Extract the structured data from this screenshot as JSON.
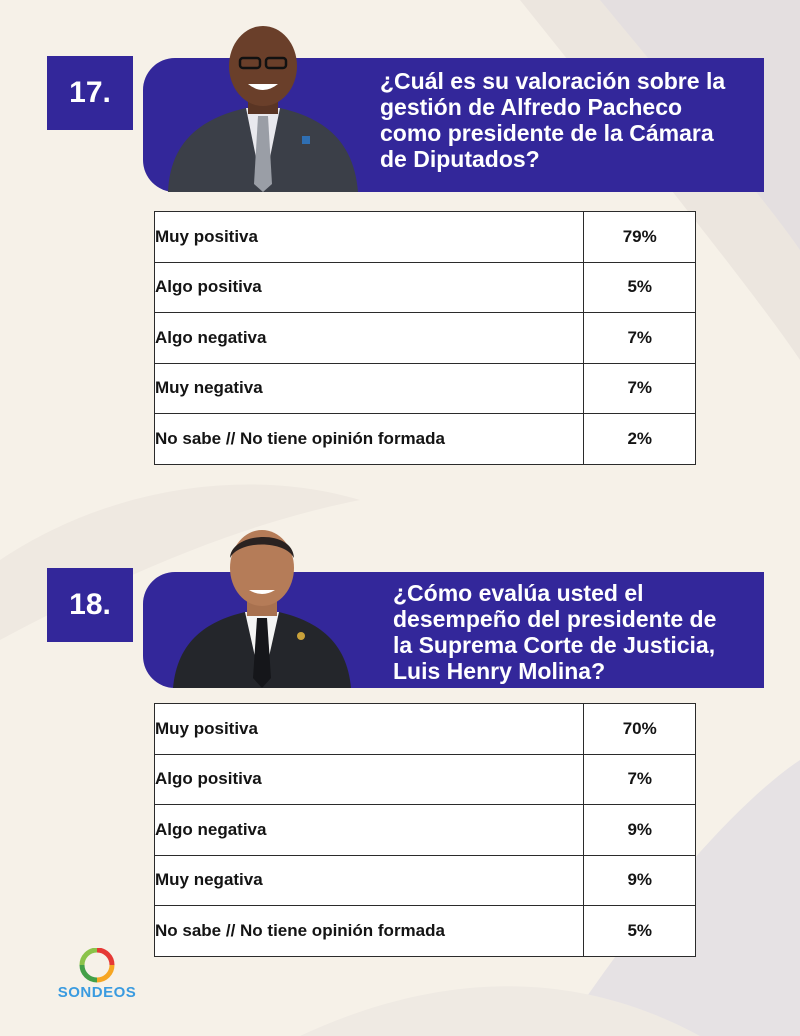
{
  "questions": [
    {
      "number": "17.",
      "text": "¿Cuál es su valoración sobre la gestión de Alfredo Pacheco como presidente de la Cámara de Diputados?",
      "rows": [
        {
          "label": "Muy positiva",
          "value": "79%"
        },
        {
          "label": "Algo positiva",
          "value": "5%"
        },
        {
          "label": "Algo negativa",
          "value": "7%"
        },
        {
          "label": "Muy negativa",
          "value": "7%"
        },
        {
          "label": "No sabe // No tiene opinión formada",
          "value": "2%"
        }
      ]
    },
    {
      "number": "18.",
      "text": "¿Cómo evalúa usted el desempeño del presidente de la Suprema Corte de Justicia, Luis Henry Molina?",
      "rows": [
        {
          "label": "Muy positiva",
          "value": "70%"
        },
        {
          "label": "Algo positiva",
          "value": "7%"
        },
        {
          "label": "Algo negativa",
          "value": "9%"
        },
        {
          "label": "Muy negativa",
          "value": "9%"
        },
        {
          "label": "No sabe // No tiene opinión formada",
          "value": "5%"
        }
      ]
    }
  ],
  "logo": {
    "text": "SONDEOS"
  },
  "colors": {
    "banner": "#33279a",
    "background": "#f6f1e8",
    "logo_text": "#3a9be0"
  }
}
